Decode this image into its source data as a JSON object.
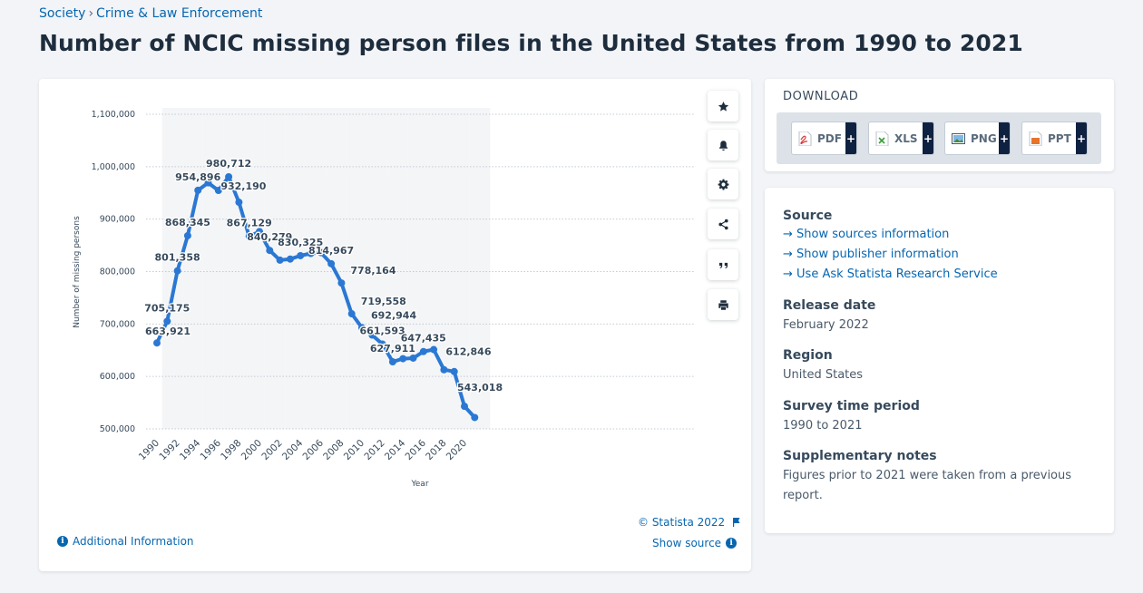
{
  "breadcrumb": {
    "part1": "Society",
    "separator": "›",
    "part2": "Crime & Law Enforcement"
  },
  "page_title": "Number of NCIC missing person files in the United States from 1990 to 2021",
  "chart_footer": {
    "copyright": "© Statista 2022",
    "additional_info": "Additional Information",
    "show_source": "Show source"
  },
  "download": {
    "heading": "DOWNLOAD",
    "buttons": [
      {
        "label": "PDF",
        "plus": "+"
      },
      {
        "label": "XLS",
        "plus": "+"
      },
      {
        "label": "PNG",
        "plus": "+"
      },
      {
        "label": "PPT",
        "plus": "+"
      }
    ]
  },
  "info": {
    "source_heading": "Source",
    "source_links": [
      "Show sources information",
      "Show publisher information",
      "Use Ask Statista Research Service"
    ],
    "link_arrow": "→",
    "release_heading": "Release date",
    "release_value": "February 2022",
    "region_heading": "Region",
    "region_value": "United States",
    "period_heading": "Survey time period",
    "period_value": "1990 to 2021",
    "notes_heading": "Supplementary notes",
    "notes_line1": "Figures prior to 2021 were taken from a previous",
    "notes_line2": "report."
  },
  "colors": {
    "line": "#2a78d3",
    "link": "#0666b0",
    "band": "#f4f5f7"
  },
  "chart_data": {
    "type": "line",
    "title": "Number of NCIC missing person files in the United States from 1990 to 2021",
    "xlabel": "Year",
    "ylabel": "Number of missing persons",
    "ylim": [
      500000,
      1100000
    ],
    "yticks": [
      500000,
      600000,
      700000,
      800000,
      900000,
      1000000,
      1100000
    ],
    "ytick_labels": [
      "500,000",
      "600,000",
      "700,000",
      "800,000",
      "900,000",
      "1,000,000",
      "1,100,000"
    ],
    "xtick_labels": [
      "1990",
      "1992",
      "1994",
      "1996",
      "1998",
      "2000",
      "2002",
      "2004",
      "2006",
      "2008",
      "2010",
      "2012",
      "2014",
      "2016",
      "2018",
      "2020"
    ],
    "x": [
      1990,
      1991,
      1992,
      1993,
      1994,
      1995,
      1996,
      1997,
      1998,
      1999,
      2000,
      2001,
      2002,
      2003,
      2004,
      2005,
      2006,
      2007,
      2008,
      2009,
      2010,
      2011,
      2012,
      2013,
      2014,
      2015,
      2016,
      2017,
      2018,
      2019,
      2020,
      2021
    ],
    "series": [
      {
        "name": "Number of missing persons",
        "values": [
          663921,
          705175,
          801358,
          868345,
          954896,
          969264,
          954652,
          980712,
          932190,
          867129,
          876213,
          840279,
          821765,
          823830,
          830325,
          834536,
          836131,
          814967,
          778164,
          719558,
          692944,
          678860,
          661593,
          627911,
          633876,
          634908,
          647435,
          651226,
          612846,
          609275,
          543018,
          521705
        ]
      }
    ],
    "data_labels": [
      {
        "year": 1990,
        "text": "663,921"
      },
      {
        "year": 1991,
        "text": "705,175"
      },
      {
        "year": 1992,
        "text": "801,358"
      },
      {
        "year": 1993,
        "text": "868,345"
      },
      {
        "year": 1994,
        "text": "954,896"
      },
      {
        "year": 1997,
        "text": "980,712"
      },
      {
        "year": 1998,
        "text": "932,190"
      },
      {
        "year": 1999,
        "text": "867,129"
      },
      {
        "year": 2001,
        "text": "840,279"
      },
      {
        "year": 2004,
        "text": "830,325"
      },
      {
        "year": 2007,
        "text": "814,967"
      },
      {
        "year": 2008,
        "text": "778,164"
      },
      {
        "year": 2009,
        "text": "719,558"
      },
      {
        "year": 2010,
        "text": "692,944"
      },
      {
        "year": 2012,
        "text": "661,593"
      },
      {
        "year": 2013,
        "text": "627,911"
      },
      {
        "year": 2016,
        "text": "647,435"
      },
      {
        "year": 2018,
        "text": "612,846"
      },
      {
        "year": 2020,
        "text": "543,018"
      }
    ],
    "grid": true,
    "legend": "none"
  }
}
